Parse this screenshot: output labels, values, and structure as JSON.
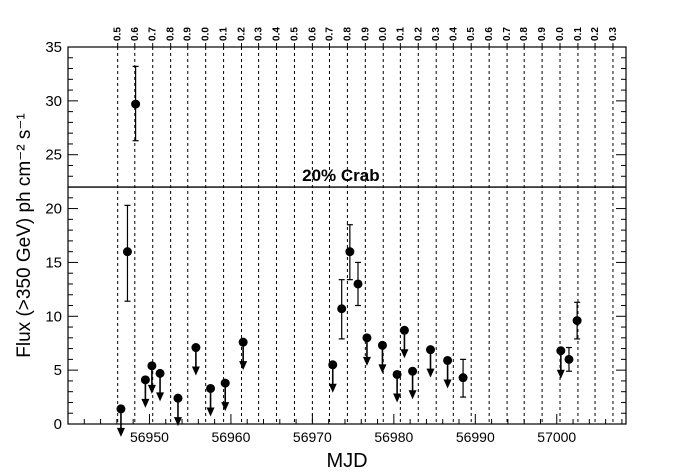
{
  "chart_data": {
    "type": "scatter",
    "xlabel": "MJD",
    "ylabel": "Flux (>350 GeV) ph cm⁻² s⁻¹",
    "xlim": [
      56940,
      57008.5
    ],
    "ylim": [
      0,
      35
    ],
    "x_ticks": [
      56950,
      56960,
      56970,
      56980,
      56990,
      57000
    ],
    "y_ticks": [
      0,
      5,
      10,
      15,
      20,
      25,
      30,
      35
    ],
    "grid": false,
    "reference_line": {
      "y": 22,
      "label": "20% Crab"
    },
    "phase_lines": [
      {
        "mjd": 56946.1,
        "label": "0.5"
      },
      {
        "mjd": 56948.2,
        "label": "0.6"
      },
      {
        "mjd": 56950.4,
        "label": "0.7"
      },
      {
        "mjd": 56952.6,
        "label": "0.8"
      },
      {
        "mjd": 56954.7,
        "label": "0.9"
      },
      {
        "mjd": 56956.9,
        "label": "0.0"
      },
      {
        "mjd": 56959.1,
        "label": "0.1"
      },
      {
        "mjd": 56961.3,
        "label": "0.2"
      },
      {
        "mjd": 56963.4,
        "label": "0.3"
      },
      {
        "mjd": 56965.6,
        "label": "0.4"
      },
      {
        "mjd": 56967.8,
        "label": "0.5"
      },
      {
        "mjd": 56970.0,
        "label": "0.6"
      },
      {
        "mjd": 56972.1,
        "label": "0.7"
      },
      {
        "mjd": 56974.3,
        "label": "0.8"
      },
      {
        "mjd": 56976.5,
        "label": "0.9"
      },
      {
        "mjd": 56978.7,
        "label": "0.0"
      },
      {
        "mjd": 56980.8,
        "label": "0.1"
      },
      {
        "mjd": 56983.0,
        "label": "0.2"
      },
      {
        "mjd": 56985.2,
        "label": "0.3"
      },
      {
        "mjd": 56987.3,
        "label": "0.4"
      },
      {
        "mjd": 56989.5,
        "label": "0.5"
      },
      {
        "mjd": 56991.7,
        "label": "0.6"
      },
      {
        "mjd": 56993.9,
        "label": "0.7"
      },
      {
        "mjd": 56996.0,
        "label": "0.8"
      },
      {
        "mjd": 56998.2,
        "label": "0.9"
      },
      {
        "mjd": 57000.4,
        "label": "0.0"
      },
      {
        "mjd": 57002.6,
        "label": "0.1"
      },
      {
        "mjd": 57004.7,
        "label": "0.2"
      },
      {
        "mjd": 57006.9,
        "label": "0.3"
      }
    ],
    "phase_labels_override": [
      "0.5",
      "0.6",
      "0.7",
      "0.8",
      "0.9",
      "0.0",
      "0.1",
      "0.2",
      "0.3",
      "0.4",
      "0.5",
      "0.6",
      "0.7",
      "0.8",
      "0.9",
      "0.0",
      "0.1",
      "0.2",
      "0.3",
      "0.4",
      "0.5",
      "0.6",
      "0.7",
      "0.8",
      "0.9",
      "0.0",
      "0.1",
      "0.2",
      "0.3"
    ],
    "detections": [
      {
        "x": 56947.3,
        "y": 16.0,
        "err_lo": 4.6,
        "err_hi": 4.3
      },
      {
        "x": 56948.3,
        "y": 29.7,
        "err_lo": 3.4,
        "err_hi": 3.5
      },
      {
        "x": 56973.6,
        "y": 10.7,
        "err_lo": 2.8,
        "err_hi": 2.7
      },
      {
        "x": 56974.6,
        "y": 16.0,
        "err_lo": 2.6,
        "err_hi": 2.5
      },
      {
        "x": 56975.6,
        "y": 13.0,
        "err_lo": 2.0,
        "err_hi": 2.0
      },
      {
        "x": 56988.5,
        "y": 4.3,
        "err_lo": 1.8,
        "err_hi": 1.7
      },
      {
        "x": 57001.5,
        "y": 6.0,
        "err_lo": 1.1,
        "err_hi": 1.1
      },
      {
        "x": 57002.5,
        "y": 9.6,
        "err_lo": 1.7,
        "err_hi": 1.7
      }
    ],
    "upper_limits": [
      {
        "x": 56946.5,
        "y": 1.4
      },
      {
        "x": 56949.5,
        "y": 4.1
      },
      {
        "x": 56950.3,
        "y": 5.4
      },
      {
        "x": 56951.3,
        "y": 4.7
      },
      {
        "x": 56953.5,
        "y": 2.4
      },
      {
        "x": 56955.7,
        "y": 7.1
      },
      {
        "x": 56957.5,
        "y": 3.3
      },
      {
        "x": 56959.3,
        "y": 3.8
      },
      {
        "x": 56961.5,
        "y": 7.6
      },
      {
        "x": 56972.5,
        "y": 5.5
      },
      {
        "x": 56976.7,
        "y": 8.0
      },
      {
        "x": 56978.6,
        "y": 7.3
      },
      {
        "x": 56980.4,
        "y": 4.6
      },
      {
        "x": 56981.3,
        "y": 8.7
      },
      {
        "x": 56982.3,
        "y": 4.9
      },
      {
        "x": 56984.5,
        "y": 6.9
      },
      {
        "x": 56986.6,
        "y": 5.9
      },
      {
        "x": 57000.5,
        "y": 6.8
      }
    ]
  }
}
